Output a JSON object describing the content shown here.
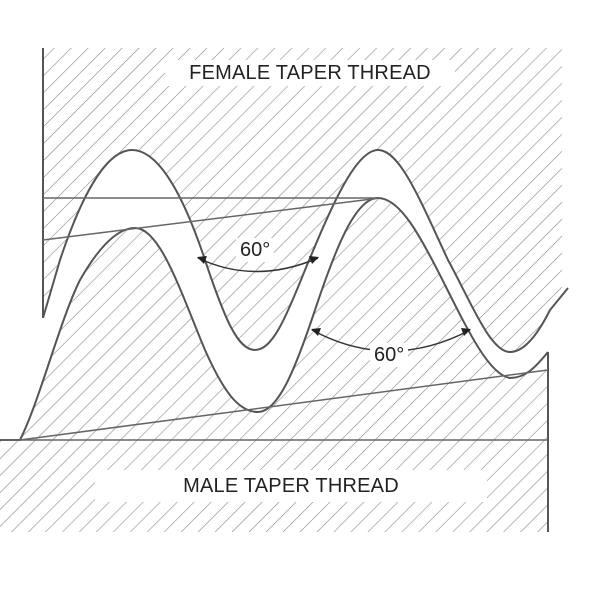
{
  "labels": {
    "female": "FEMALE TAPER THREAD",
    "male": "MALE TAPER THREAD",
    "angle_upper": "60°",
    "angle_lower": "60°"
  },
  "colors": {
    "line": "#555555",
    "hatch": "#8a8a8a",
    "background": "#ffffff"
  }
}
